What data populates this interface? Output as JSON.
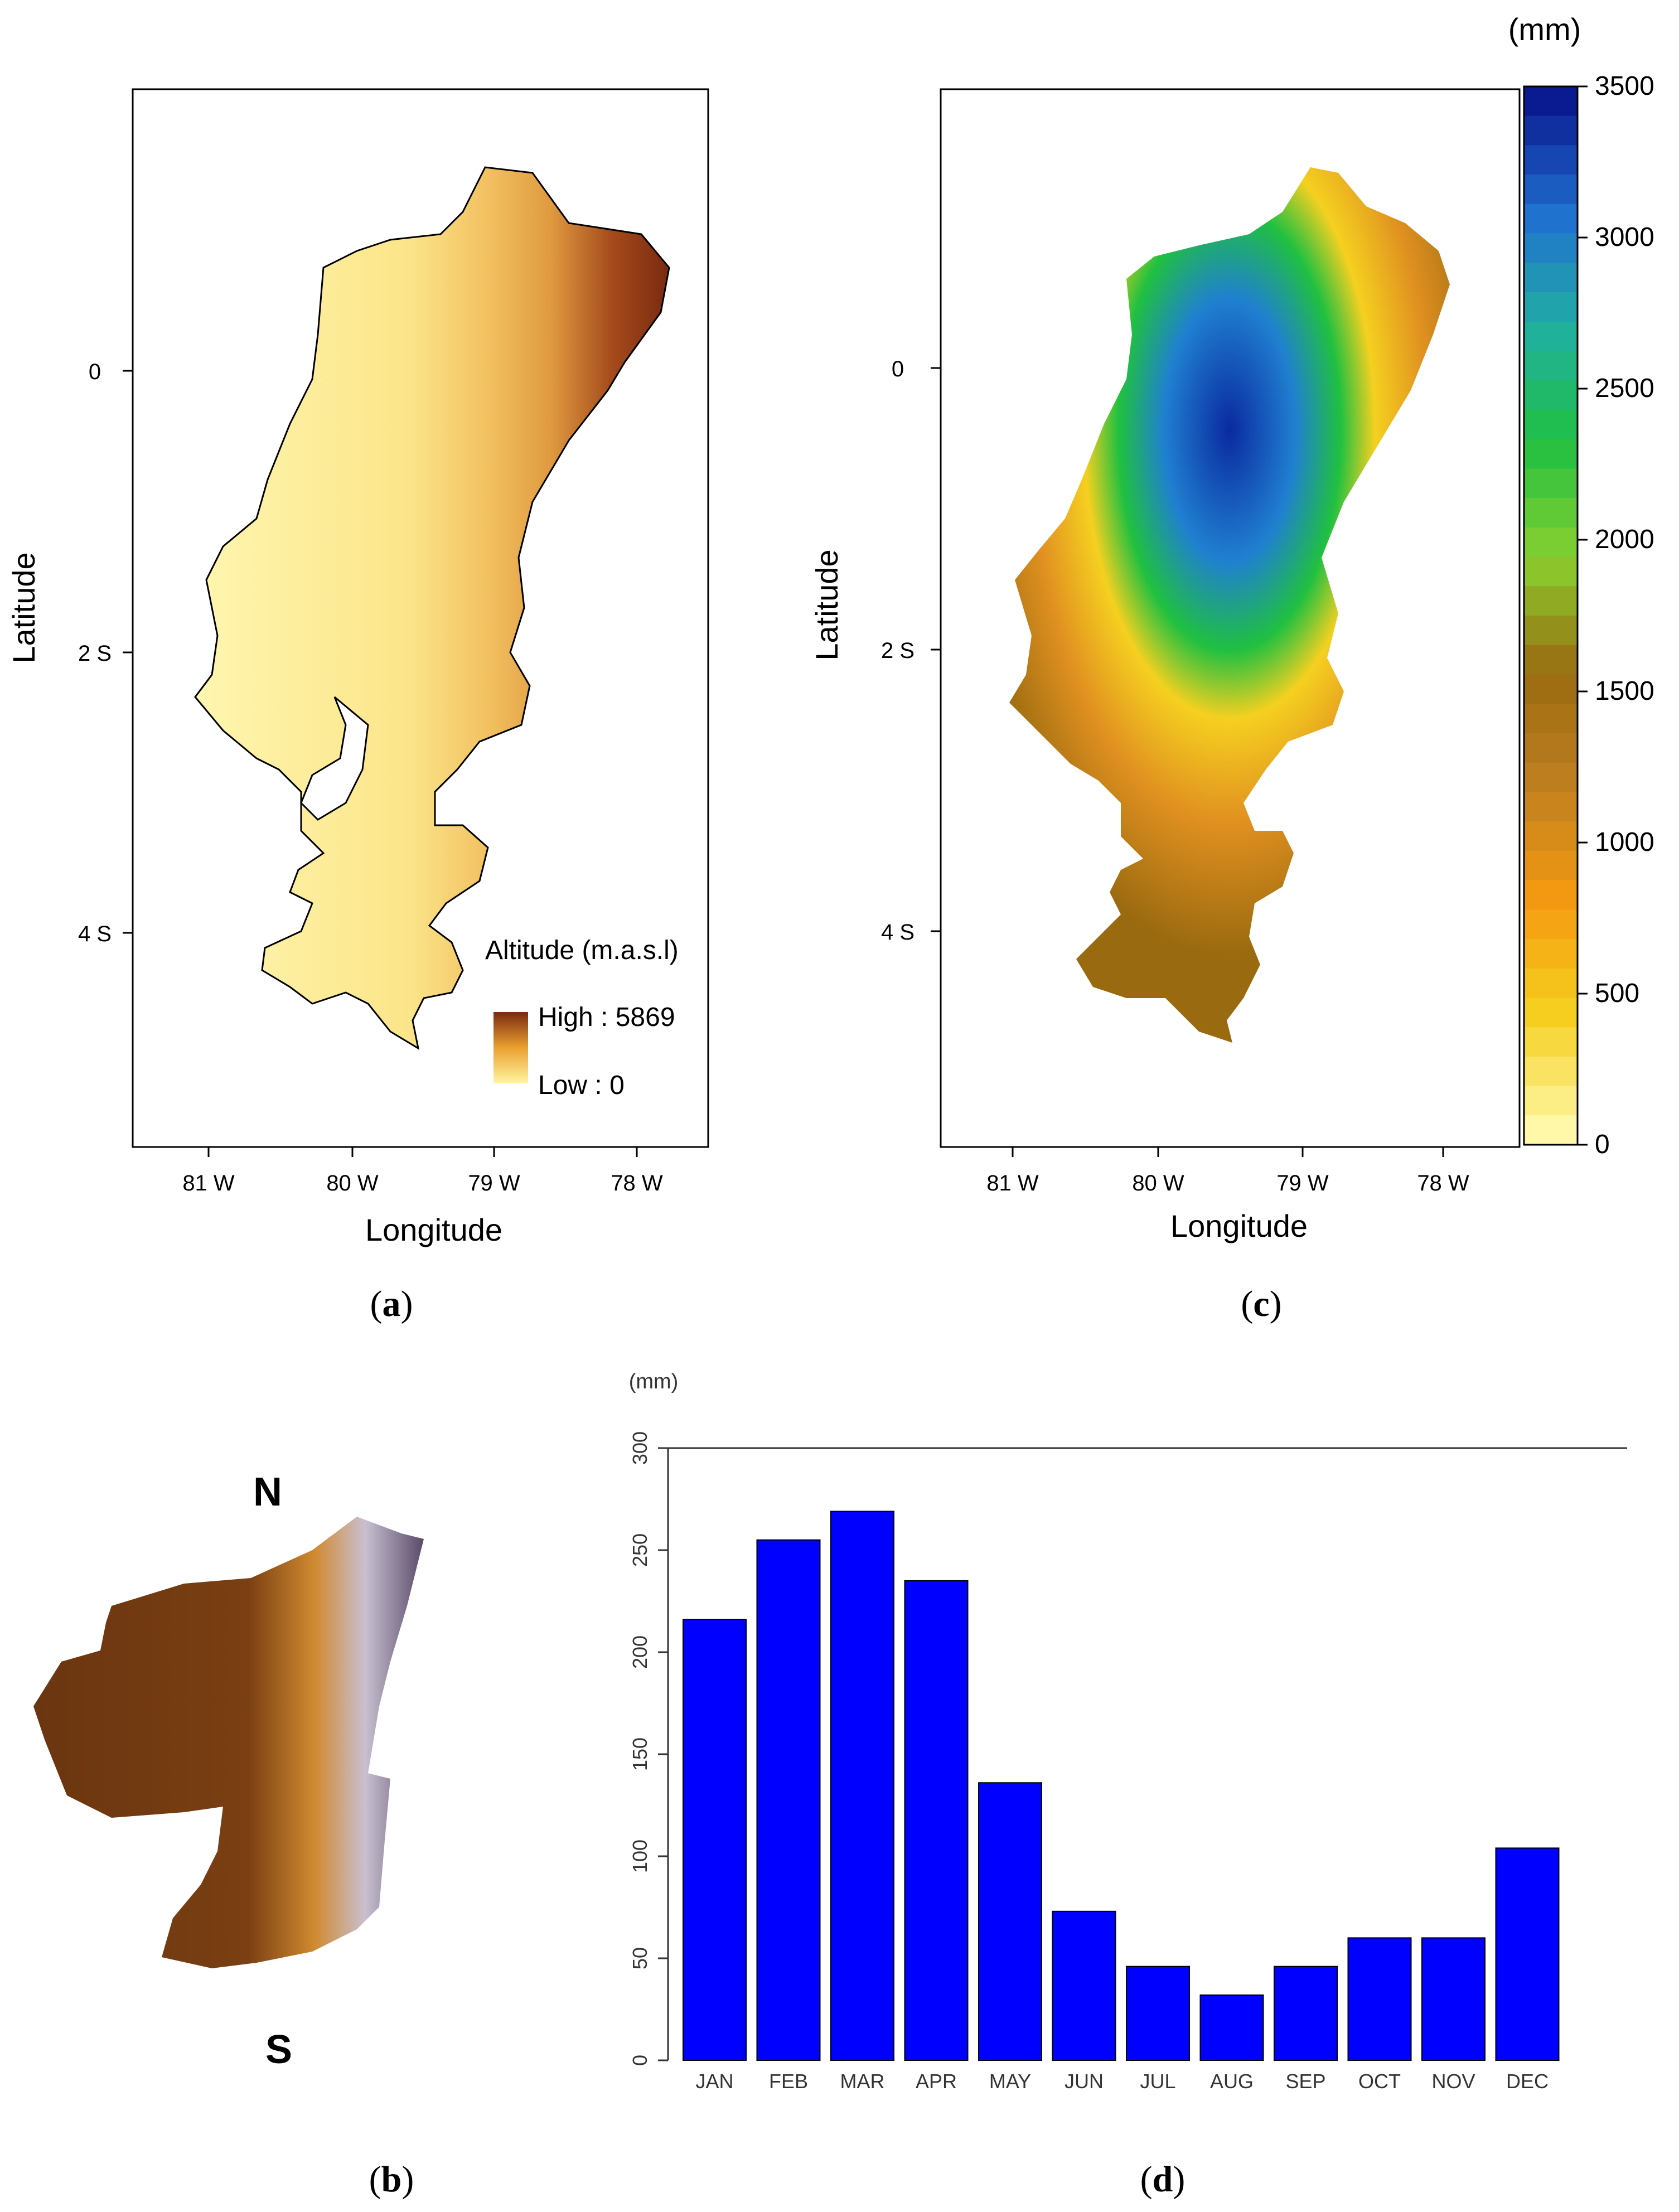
{
  "panels": {
    "a": {
      "caption_open": "(",
      "caption_letter": "a",
      "caption_close": ")",
      "xlabel": "Longitude",
      "ylabel": "Latitude",
      "xticks": [
        "81  W",
        "80  W",
        "79  W",
        "78  W"
      ],
      "yticks": [
        "0",
        "2  S",
        "4  S"
      ],
      "legend": {
        "title": "Altitude (m.a.s.l)",
        "high": "High : 5869",
        "low": "Low : 0"
      },
      "colors": {
        "low": "#fff3a0",
        "mid": "#eaa030",
        "high": "#7a2a10"
      }
    },
    "b": {
      "caption_open": "(",
      "caption_letter": "b",
      "caption_close": ")",
      "north": "N",
      "south": "S"
    },
    "c": {
      "caption_open": "(",
      "caption_letter": "c",
      "caption_close": ")",
      "xlabel": "Longitude",
      "ylabel": "Latitude",
      "xticks": [
        "81  W",
        "80  W",
        "79  W",
        "78  W"
      ],
      "yticks": [
        "0",
        "2  S",
        "4  S"
      ],
      "unit": "(mm)",
      "scale_ticks": [
        "3500",
        "3000",
        "2500",
        "2000",
        "1500",
        "1000",
        "500",
        "0"
      ],
      "scale_colors": [
        "#fff8a8",
        "#f5d020",
        "#f59a10",
        "#c08020",
        "#9a6a10",
        "#8ad030",
        "#20c040",
        "#20b0a0",
        "#2070d0",
        "#0a1a90"
      ]
    },
    "d": {
      "caption_open": "(",
      "caption_letter": "d",
      "caption_close": ")"
    }
  },
  "chart_data": [
    {
      "type": "bar",
      "panel": "d",
      "title": "",
      "ylabel": "(mm)",
      "xlabel": "",
      "categories": [
        "JAN",
        "FEB",
        "MAR",
        "APR",
        "MAY",
        "JUN",
        "JUL",
        "AUG",
        "SEP",
        "OCT",
        "NOV",
        "DEC"
      ],
      "values": [
        216,
        255,
        269,
        235,
        136,
        73,
        46,
        32,
        46,
        60,
        60,
        104
      ],
      "ylim": [
        0,
        300
      ],
      "yticks": [
        0,
        50,
        100,
        150,
        200,
        250,
        300
      ],
      "bar_color": "#0000ff",
      "grid": false
    }
  ]
}
